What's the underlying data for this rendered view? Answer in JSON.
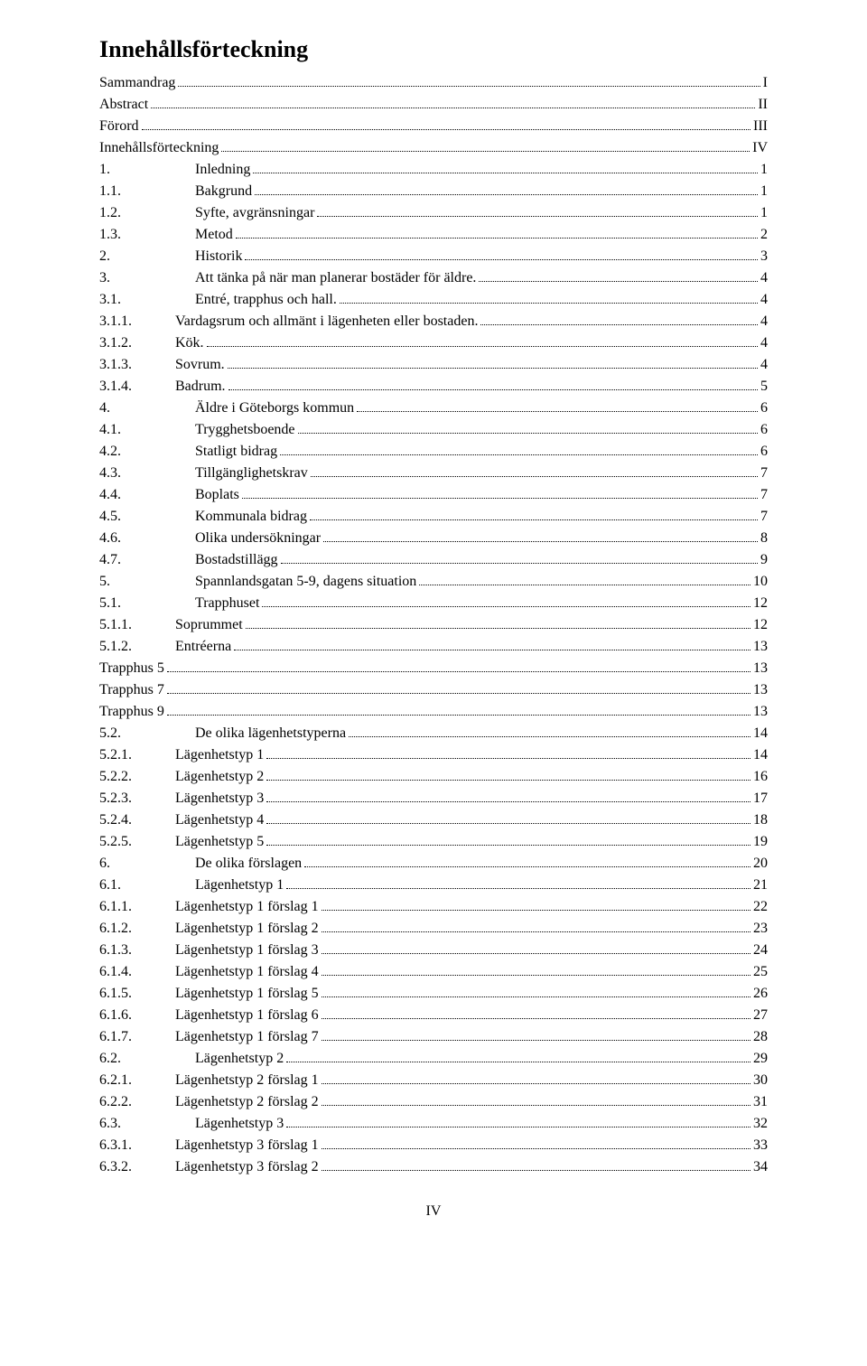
{
  "heading": "Innehållsförteckning",
  "page_number": "IV",
  "toc": [
    {
      "num": "",
      "label": "Sammandrag",
      "page": "I",
      "indent": 0,
      "gap": 0
    },
    {
      "num": "",
      "label": "Abstract",
      "page": "II",
      "indent": 0,
      "gap": 0
    },
    {
      "num": "",
      "label": "Förord",
      "page": "III",
      "indent": 0,
      "gap": 0
    },
    {
      "num": "",
      "label": "Innehållsförteckning",
      "page": "IV",
      "indent": 0,
      "gap": 0
    },
    {
      "num": "1.",
      "label": "Inledning",
      "page": "1",
      "indent": 1,
      "gap": 40
    },
    {
      "num": "1.1.",
      "label": "Bakgrund",
      "page": "1",
      "indent": 1,
      "gap": 40
    },
    {
      "num": "1.2.",
      "label": "Syfte, avgränsningar",
      "page": "1",
      "indent": 1,
      "gap": 40
    },
    {
      "num": "1.3.",
      "label": "Metod",
      "page": "2",
      "indent": 1,
      "gap": 40
    },
    {
      "num": "2.",
      "label": "Historik",
      "page": "3",
      "indent": 1,
      "gap": 40
    },
    {
      "num": "3.",
      "label": "Att tänka på när man planerar bostäder för äldre.",
      "page": "4",
      "indent": 1,
      "gap": 40
    },
    {
      "num": "3.1.",
      "label": "Entré, trapphus och hall.",
      "page": "4",
      "indent": 1,
      "gap": 40
    },
    {
      "num": "3.1.1.",
      "label": "Vardagsrum och allmänt i lägenheten eller bostaden.",
      "page": "4",
      "indent": 1,
      "gap": 18
    },
    {
      "num": "3.1.2.",
      "label": "Kök.",
      "page": "4",
      "indent": 1,
      "gap": 18
    },
    {
      "num": "3.1.3.",
      "label": "Sovrum.",
      "page": "4",
      "indent": 1,
      "gap": 18
    },
    {
      "num": "3.1.4.",
      "label": "Badrum.",
      "page": "5",
      "indent": 1,
      "gap": 18
    },
    {
      "num": "4.",
      "label": "Äldre i Göteborgs kommun",
      "page": "6",
      "indent": 1,
      "gap": 40
    },
    {
      "num": "4.1.",
      "label": "Trygghetsboende",
      "page": "6",
      "indent": 1,
      "gap": 40
    },
    {
      "num": "4.2.",
      "label": "Statligt bidrag",
      "page": "6",
      "indent": 1,
      "gap": 40
    },
    {
      "num": "4.3.",
      "label": "Tillgänglighetskrav",
      "page": "7",
      "indent": 1,
      "gap": 40
    },
    {
      "num": "4.4.",
      "label": "Boplats",
      "page": "7",
      "indent": 1,
      "gap": 40
    },
    {
      "num": "4.5.",
      "label": "Kommunala bidrag",
      "page": "7",
      "indent": 1,
      "gap": 40
    },
    {
      "num": "4.6.",
      "label": "Olika undersökningar",
      "page": "8",
      "indent": 1,
      "gap": 40
    },
    {
      "num": "4.7.",
      "label": "Bostadstillägg",
      "page": "9",
      "indent": 1,
      "gap": 40
    },
    {
      "num": "5.",
      "label": "Spannlandsgatan 5-9, dagens situation",
      "page": "10",
      "indent": 1,
      "gap": 40
    },
    {
      "num": "5.1.",
      "label": "Trapphuset",
      "page": "12",
      "indent": 1,
      "gap": 40
    },
    {
      "num": "5.1.1.",
      "label": "Soprummet",
      "page": "12",
      "indent": 1,
      "gap": 18
    },
    {
      "num": "5.1.2.",
      "label": "Entréerna",
      "page": "13",
      "indent": 1,
      "gap": 18
    },
    {
      "num": "",
      "label": "Trapphus 5",
      "page": "13",
      "indent": 0,
      "gap": 0
    },
    {
      "num": "",
      "label": "Trapphus 7",
      "page": "13",
      "indent": 0,
      "gap": 0
    },
    {
      "num": "",
      "label": "Trapphus 9",
      "page": "13",
      "indent": 0,
      "gap": 0
    },
    {
      "num": "5.2.",
      "label": "De olika lägenhetstyperna",
      "page": "14",
      "indent": 1,
      "gap": 40
    },
    {
      "num": "5.2.1.",
      "label": "Lägenhetstyp 1",
      "page": "14",
      "indent": 1,
      "gap": 18
    },
    {
      "num": "5.2.2.",
      "label": "Lägenhetstyp 2",
      "page": "16",
      "indent": 1,
      "gap": 18
    },
    {
      "num": "5.2.3.",
      "label": "Lägenhetstyp 3",
      "page": "17",
      "indent": 1,
      "gap": 18
    },
    {
      "num": "5.2.4.",
      "label": "Lägenhetstyp 4",
      "page": "18",
      "indent": 1,
      "gap": 18
    },
    {
      "num": "5.2.5.",
      "label": "Lägenhetstyp 5",
      "page": "19",
      "indent": 1,
      "gap": 18
    },
    {
      "num": "6.",
      "label": "De olika förslagen",
      "page": "20",
      "indent": 1,
      "gap": 40
    },
    {
      "num": "6.1.",
      "label": "Lägenhetstyp 1",
      "page": "21",
      "indent": 1,
      "gap": 40
    },
    {
      "num": "6.1.1.",
      "label": "Lägenhetstyp 1 förslag 1",
      "page": "22",
      "indent": 1,
      "gap": 18
    },
    {
      "num": "6.1.2.",
      "label": "Lägenhetstyp 1 förslag 2",
      "page": "23",
      "indent": 1,
      "gap": 18
    },
    {
      "num": "6.1.3.",
      "label": "Lägenhetstyp 1 förslag 3",
      "page": "24",
      "indent": 1,
      "gap": 18
    },
    {
      "num": "6.1.4.",
      "label": "Lägenhetstyp 1 förslag 4",
      "page": "25",
      "indent": 1,
      "gap": 18
    },
    {
      "num": "6.1.5.",
      "label": "Lägenhetstyp 1 förslag 5",
      "page": "26",
      "indent": 1,
      "gap": 18
    },
    {
      "num": "6.1.6.",
      "label": "Lägenhetstyp 1 förslag 6",
      "page": "27",
      "indent": 1,
      "gap": 18
    },
    {
      "num": "6.1.7.",
      "label": "Lägenhetstyp 1 förslag 7",
      "page": "28",
      "indent": 1,
      "gap": 18
    },
    {
      "num": "6.2.",
      "label": "Lägenhetstyp 2",
      "page": "29",
      "indent": 1,
      "gap": 40
    },
    {
      "num": "6.2.1.",
      "label": "Lägenhetstyp 2 förslag 1",
      "page": "30",
      "indent": 1,
      "gap": 18
    },
    {
      "num": "6.2.2.",
      "label": "Lägenhetstyp 2 förslag 2",
      "page": "31",
      "indent": 1,
      "gap": 18
    },
    {
      "num": "6.3.",
      "label": "Lägenhetstyp 3",
      "page": "32",
      "indent": 1,
      "gap": 40
    },
    {
      "num": "6.3.1.",
      "label": "Lägenhetstyp 3 förslag 1",
      "page": "33",
      "indent": 1,
      "gap": 18
    },
    {
      "num": "6.3.2.",
      "label": "Lägenhetstyp 3 förslag 2",
      "page": "34",
      "indent": 1,
      "gap": 18
    }
  ]
}
